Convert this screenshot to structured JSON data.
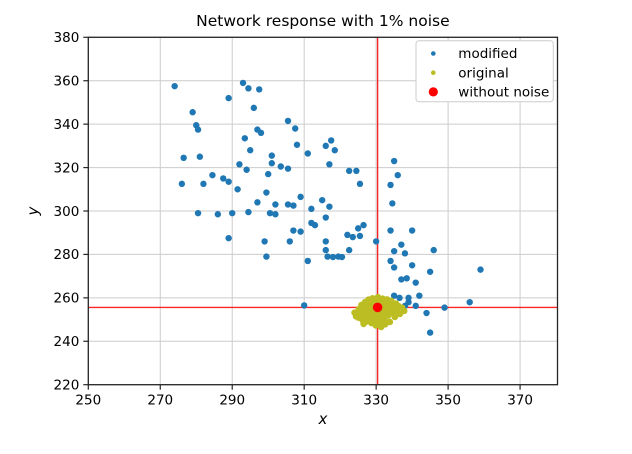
{
  "chart_data": {
    "type": "scatter",
    "title": "Network response with 1% noise",
    "xlabel": "x",
    "ylabel": "y",
    "xlim": [
      250,
      380.4
    ],
    "ylim": [
      220,
      380
    ],
    "xticks": [
      250,
      270,
      290,
      310,
      330,
      350,
      370
    ],
    "yticks": [
      220,
      240,
      260,
      280,
      300,
      320,
      340,
      360,
      380
    ],
    "grid": true,
    "legend_position": "upper right",
    "colors": {
      "grid": "#cccccc",
      "spine": "#262626",
      "background": "#ffffff",
      "crosshair": "#ff0000"
    },
    "crosshair": {
      "x": 330.4,
      "y": 255.6
    },
    "series": [
      {
        "name": "modified",
        "color": "#1f77b4",
        "marker_radius": 3.2,
        "legend_radius": 2.3,
        "points": [
          [
            274,
            357.5
          ],
          [
            293,
            359
          ],
          [
            294.5,
            356.5
          ],
          [
            297.5,
            356
          ],
          [
            289,
            352
          ],
          [
            279,
            345.5
          ],
          [
            296,
            347.5
          ],
          [
            305.5,
            341.5
          ],
          [
            280,
            339.5
          ],
          [
            280.5,
            337.5
          ],
          [
            307.5,
            338
          ],
          [
            297,
            337.5
          ],
          [
            298,
            336
          ],
          [
            293.5,
            333.5
          ],
          [
            308,
            330.5
          ],
          [
            295,
            328
          ],
          [
            311,
            326.5
          ],
          [
            301,
            325.5
          ],
          [
            276.5,
            324.5
          ],
          [
            281,
            325
          ],
          [
            301,
            322
          ],
          [
            292,
            321.5
          ],
          [
            294,
            319
          ],
          [
            303.5,
            320.5
          ],
          [
            305.5,
            319.5
          ],
          [
            300,
            317
          ],
          [
            284.5,
            316.5
          ],
          [
            287.5,
            315
          ],
          [
            289,
            313.5
          ],
          [
            276,
            312.5
          ],
          [
            282,
            312.5
          ],
          [
            291.5,
            310
          ],
          [
            299.5,
            308.5
          ],
          [
            315,
            305
          ],
          [
            302,
            303
          ],
          [
            312,
            301
          ],
          [
            317.5,
            332.5
          ],
          [
            316,
            330
          ],
          [
            318.5,
            328
          ],
          [
            317,
            321.5
          ],
          [
            322.5,
            318.5
          ],
          [
            324.5,
            318.5
          ],
          [
            325.5,
            312.5
          ],
          [
            335,
            323
          ],
          [
            336,
            316.5
          ],
          [
            334,
            312
          ],
          [
            334.5,
            303.5
          ],
          [
            317,
            302
          ],
          [
            309,
            306.5
          ],
          [
            280.5,
            299
          ],
          [
            286,
            298.5
          ],
          [
            290,
            299
          ],
          [
            294.5,
            299.5
          ],
          [
            297,
            304
          ],
          [
            300.5,
            299
          ],
          [
            302,
            298.5
          ],
          [
            305.5,
            303
          ],
          [
            307,
            302.5
          ],
          [
            289,
            287.5
          ],
          [
            299,
            286
          ],
          [
            306,
            286
          ],
          [
            307,
            291
          ],
          [
            309,
            290.5
          ],
          [
            312,
            294.5
          ],
          [
            313,
            293.5
          ],
          [
            299.5,
            279
          ],
          [
            311,
            277
          ],
          [
            310,
            256.5
          ],
          [
            316,
            297
          ],
          [
            322,
            289
          ],
          [
            323.5,
            288
          ],
          [
            325.5,
            288.5
          ],
          [
            325,
            292
          ],
          [
            326.5,
            293.5
          ],
          [
            316,
            286
          ],
          [
            322.5,
            282
          ],
          [
            316,
            282
          ],
          [
            316.5,
            279
          ],
          [
            318,
            278.8
          ],
          [
            319.5,
            279
          ],
          [
            320.5,
            278.8
          ],
          [
            330,
            286
          ],
          [
            334,
            291
          ],
          [
            340,
            291
          ],
          [
            337,
            284.5
          ],
          [
            335,
            281.5
          ],
          [
            338,
            280.5
          ],
          [
            334,
            277
          ],
          [
            335,
            274
          ],
          [
            340,
            275
          ],
          [
            337,
            268.5
          ],
          [
            338.5,
            269
          ],
          [
            341,
            267
          ],
          [
            342,
            261
          ],
          [
            339,
            260
          ],
          [
            346,
            282
          ],
          [
            345,
            272
          ],
          [
            359,
            273
          ],
          [
            349,
            255.5
          ],
          [
            356,
            258
          ],
          [
            344,
            253
          ],
          [
            345,
            244
          ],
          [
            335,
            261
          ],
          [
            336.5,
            260
          ],
          [
            339,
            258
          ],
          [
            341,
            256.3
          ],
          [
            338,
            256.3
          ]
        ]
      },
      {
        "name": "original",
        "color": "#bcbd22",
        "marker_radius": 3.3,
        "legend_radius": 2.3,
        "points": [
          [
            330.5,
            260.3
          ],
          [
            329.0,
            259.8
          ],
          [
            331.8,
            259.6
          ],
          [
            327.9,
            259.2
          ],
          [
            333.0,
            259.3
          ],
          [
            330.2,
            258.9
          ],
          [
            328.6,
            258.4
          ],
          [
            331.5,
            258.2
          ],
          [
            334.2,
            258.6
          ],
          [
            326.9,
            258.0
          ],
          [
            332.8,
            257.8
          ],
          [
            329.5,
            257.5
          ],
          [
            330.9,
            257.3
          ],
          [
            327.5,
            257.0
          ],
          [
            333.9,
            257.1
          ],
          [
            335.5,
            257.4
          ],
          [
            325.9,
            256.7
          ],
          [
            328.4,
            256.5
          ],
          [
            331.8,
            256.4
          ],
          [
            330.0,
            256.1
          ],
          [
            333.1,
            256.0
          ],
          [
            336.2,
            256.2
          ],
          [
            326.7,
            255.8
          ],
          [
            329.2,
            255.6
          ],
          [
            331.1,
            255.4
          ],
          [
            334.5,
            255.3
          ],
          [
            327.8,
            255.1
          ],
          [
            332.4,
            255.0
          ],
          [
            337.2,
            255.5
          ],
          [
            325.2,
            254.8
          ],
          [
            330.4,
            254.7
          ],
          [
            328.8,
            254.4
          ],
          [
            333.6,
            254.5
          ],
          [
            335.8,
            254.2
          ],
          [
            326.3,
            254.1
          ],
          [
            331.6,
            254.0
          ],
          [
            329.8,
            253.7
          ],
          [
            327.1,
            253.4
          ],
          [
            332.9,
            253.3
          ],
          [
            334.8,
            253.0
          ],
          [
            325.6,
            252.9
          ],
          [
            330.7,
            252.7
          ],
          [
            328.3,
            252.4
          ],
          [
            331.9,
            252.2
          ],
          [
            326.8,
            252.0
          ],
          [
            333.4,
            251.9
          ],
          [
            329.4,
            251.6
          ],
          [
            327.6,
            251.3
          ],
          [
            331.2,
            251.1
          ],
          [
            325.1,
            250.9
          ],
          [
            330.1,
            250.6
          ],
          [
            328.0,
            250.3
          ],
          [
            332.3,
            250.2
          ],
          [
            326.2,
            249.9
          ],
          [
            329.7,
            249.5
          ],
          [
            327.3,
            249.1
          ],
          [
            330.9,
            248.9
          ],
          [
            328.7,
            248.4
          ],
          [
            326.5,
            248.0
          ],
          [
            329.9,
            247.3
          ],
          [
            331.4,
            246.6
          ],
          [
            324.4,
            251.5
          ],
          [
            324.0,
            253.2
          ],
          [
            337.8,
            254.0
          ],
          [
            336.6,
            252.6
          ],
          [
            335.2,
            251.2
          ],
          [
            333.8,
            248.9
          ],
          [
            332.5,
            247.8
          ]
        ]
      },
      {
        "name": "without noise",
        "color": "#ff0000",
        "marker_radius": 4.8,
        "legend_radius": 4.6,
        "points": [
          [
            330.4,
            255.6
          ]
        ]
      }
    ]
  }
}
